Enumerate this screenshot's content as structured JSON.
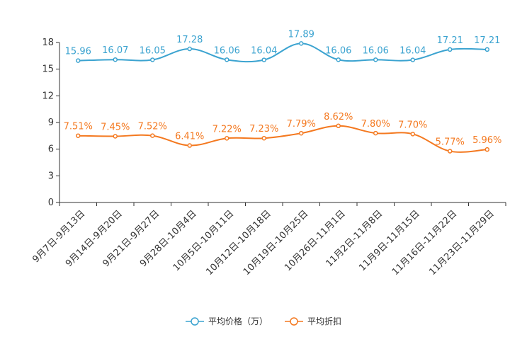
{
  "chart_data": {
    "type": "line",
    "title": "",
    "xlabel": "",
    "ylabel": "",
    "ylim": [
      0,
      18
    ],
    "yticks": [
      0,
      3,
      6,
      9,
      12,
      15,
      18
    ],
    "grid": false,
    "legend_position": "bottom-center",
    "categories": [
      "9月7日-9月13日",
      "9月14日-9月20日",
      "9月21日-9月27日",
      "9月28日-10月4日",
      "10月5日-10月11日",
      "10月12日-10月18日",
      "10月19日-10月25日",
      "10月26日-11月1日",
      "11月2日-11月8日",
      "11月9日-11月15日",
      "11月16日-11月22日",
      "11月23日-11月29日"
    ],
    "series": [
      {
        "name": "平均价格（万）",
        "color": "#3ba3d0",
        "values": [
          15.96,
          16.07,
          16.05,
          17.28,
          16.06,
          16.04,
          17.89,
          16.06,
          16.06,
          16.04,
          17.21,
          17.21
        ],
        "labels": [
          "15.96",
          "16.07",
          "16.05",
          "17.28",
          "16.06",
          "16.04",
          "17.89",
          "16.06",
          "16.06",
          "16.04",
          "17.21",
          "17.21"
        ]
      },
      {
        "name": "平均折扣",
        "color": "#f47920",
        "values": [
          7.51,
          7.45,
          7.52,
          6.41,
          7.22,
          7.23,
          7.79,
          8.62,
          7.8,
          7.7,
          5.77,
          5.96
        ],
        "labels": [
          "7.51%",
          "7.45%",
          "7.52%",
          "6.41%",
          "7.22%",
          "7.23%",
          "7.79%",
          "8.62%",
          "7.80%",
          "7.70%",
          "5.77%",
          "5.96%"
        ]
      }
    ]
  }
}
